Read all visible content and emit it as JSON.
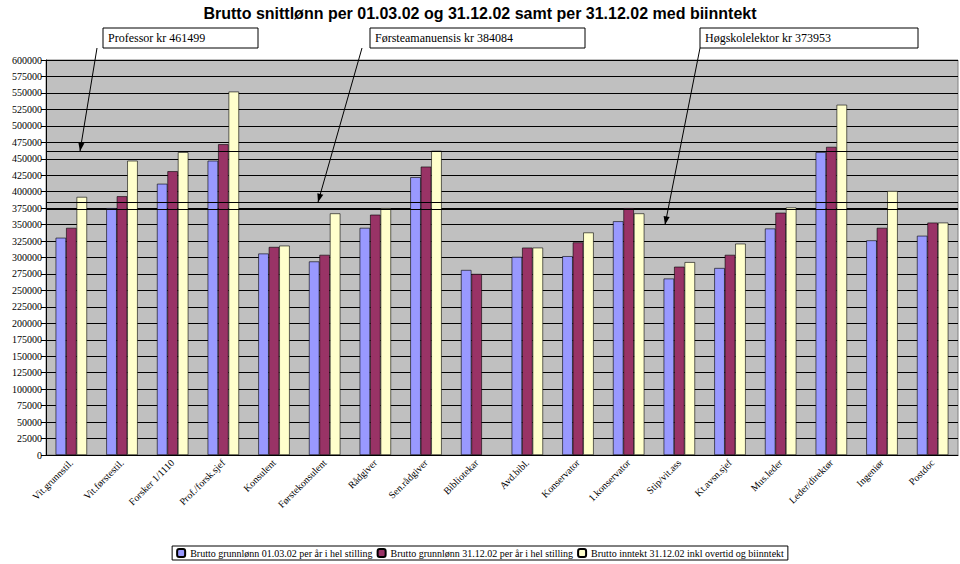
{
  "chart_data": {
    "type": "bar",
    "title": "Brutto snittlønn per 01.03.02 og 31.12.02 samt per 31.12.02 med biinntekt",
    "categories": [
      "Vit.grunnstil.",
      "Vit.førstestil.",
      "Forsker 1/1110",
      "Prof./forsk.sjef",
      "Konsulent",
      "Førstekonsulent",
      "Rådgiver",
      "Sen.rådgiver",
      "Bibliotekar",
      "Avd.bibl.",
      "Konservator",
      "1.konservator",
      "Stip/vit.ass",
      "Kt.avsn.sjef",
      "Mus.leder",
      "Leder/direktør",
      "Ingeniør",
      "Postdoc"
    ],
    "series": [
      {
        "name": "Brutto grunnlønn 01.03.02 per år i hel stilling",
        "color": "#9999ff",
        "values": [
          330000,
          375000,
          412000,
          447000,
          306000,
          294000,
          345000,
          422000,
          281000,
          301000,
          302000,
          355000,
          268000,
          284000,
          344000,
          460000,
          326000,
          333000
        ]
      },
      {
        "name": "Brutto grunnlønn 31.12.02 per år i hel stilling",
        "color": "#993366",
        "values": [
          345000,
          393000,
          431000,
          472000,
          316000,
          304000,
          365000,
          438000,
          275000,
          315000,
          323000,
          375000,
          286000,
          304000,
          368000,
          468000,
          345000,
          353000
        ]
      },
      {
        "name": "Brutto inntekt 31.12.02 inkl overtid og biinntekt",
        "color": "#ffffcc",
        "values": [
          392000,
          447000,
          460000,
          552000,
          318000,
          367000,
          375000,
          462000,
          null,
          315000,
          338000,
          367000,
          293000,
          321000,
          376000,
          532000,
          401000,
          353000
        ]
      }
    ],
    "annotations": [
      {
        "text": "Professor kr 461499",
        "value": 461499
      },
      {
        "text": "Førsteamanuensis kr 384084",
        "value": 384084
      },
      {
        "text": "Høgskolelektor kr 373953",
        "value": 373953
      }
    ],
    "ylim": [
      0,
      600000
    ],
    "yticks": [
      0,
      25000,
      50000,
      75000,
      100000,
      125000,
      150000,
      175000,
      200000,
      225000,
      250000,
      275000,
      300000,
      325000,
      350000,
      375000,
      400000,
      425000,
      450000,
      475000,
      500000,
      525000,
      550000,
      575000,
      600000
    ],
    "grid": true,
    "legend": "bottom"
  }
}
